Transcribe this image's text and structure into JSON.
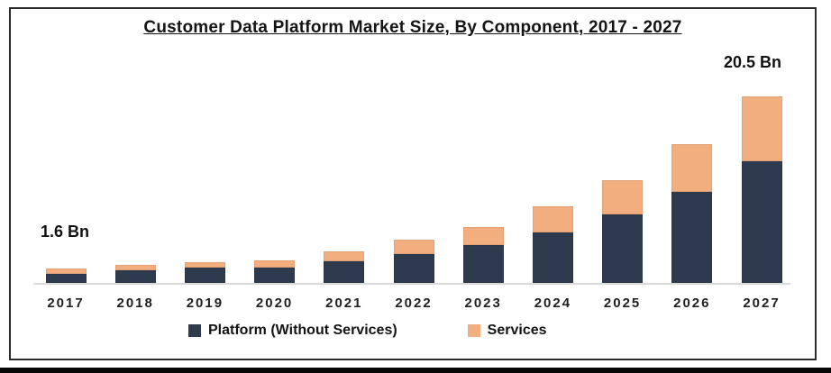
{
  "chart_data": {
    "type": "bar",
    "stacked": true,
    "title": "Customer Data Platform Market Size, By Component, 2017 - 2027",
    "unit": "Bn",
    "categories": [
      "2017",
      "2018",
      "2019",
      "2020",
      "2021",
      "2022",
      "2023",
      "2024",
      "2025",
      "2026",
      "2027"
    ],
    "series": [
      {
        "name": "Platform (Without Services)",
        "color": "#2e3b4e",
        "values": [
          1.0,
          1.4,
          1.7,
          1.7,
          2.4,
          3.2,
          4.2,
          5.5,
          7.5,
          10.0,
          13.4
        ]
      },
      {
        "name": "Services",
        "color": "#f3ae7f",
        "values": [
          0.6,
          0.6,
          0.6,
          0.8,
          1.1,
          1.6,
          2.0,
          2.9,
          3.8,
          5.2,
          7.1
        ]
      }
    ],
    "totals": [
      1.6,
      2.0,
      2.3,
      2.5,
      3.5,
      4.8,
      6.2,
      8.4,
      11.3,
      15.2,
      20.5
    ],
    "annotations": [
      {
        "text": "1.6 Bn",
        "target": "2017"
      },
      {
        "text": "20.5 Bn",
        "target": "2027"
      }
    ],
    "ylim": [
      0,
      20.5
    ],
    "grid": false,
    "legend_position": "bottom",
    "axis_line_color": "#d9d9d9"
  }
}
